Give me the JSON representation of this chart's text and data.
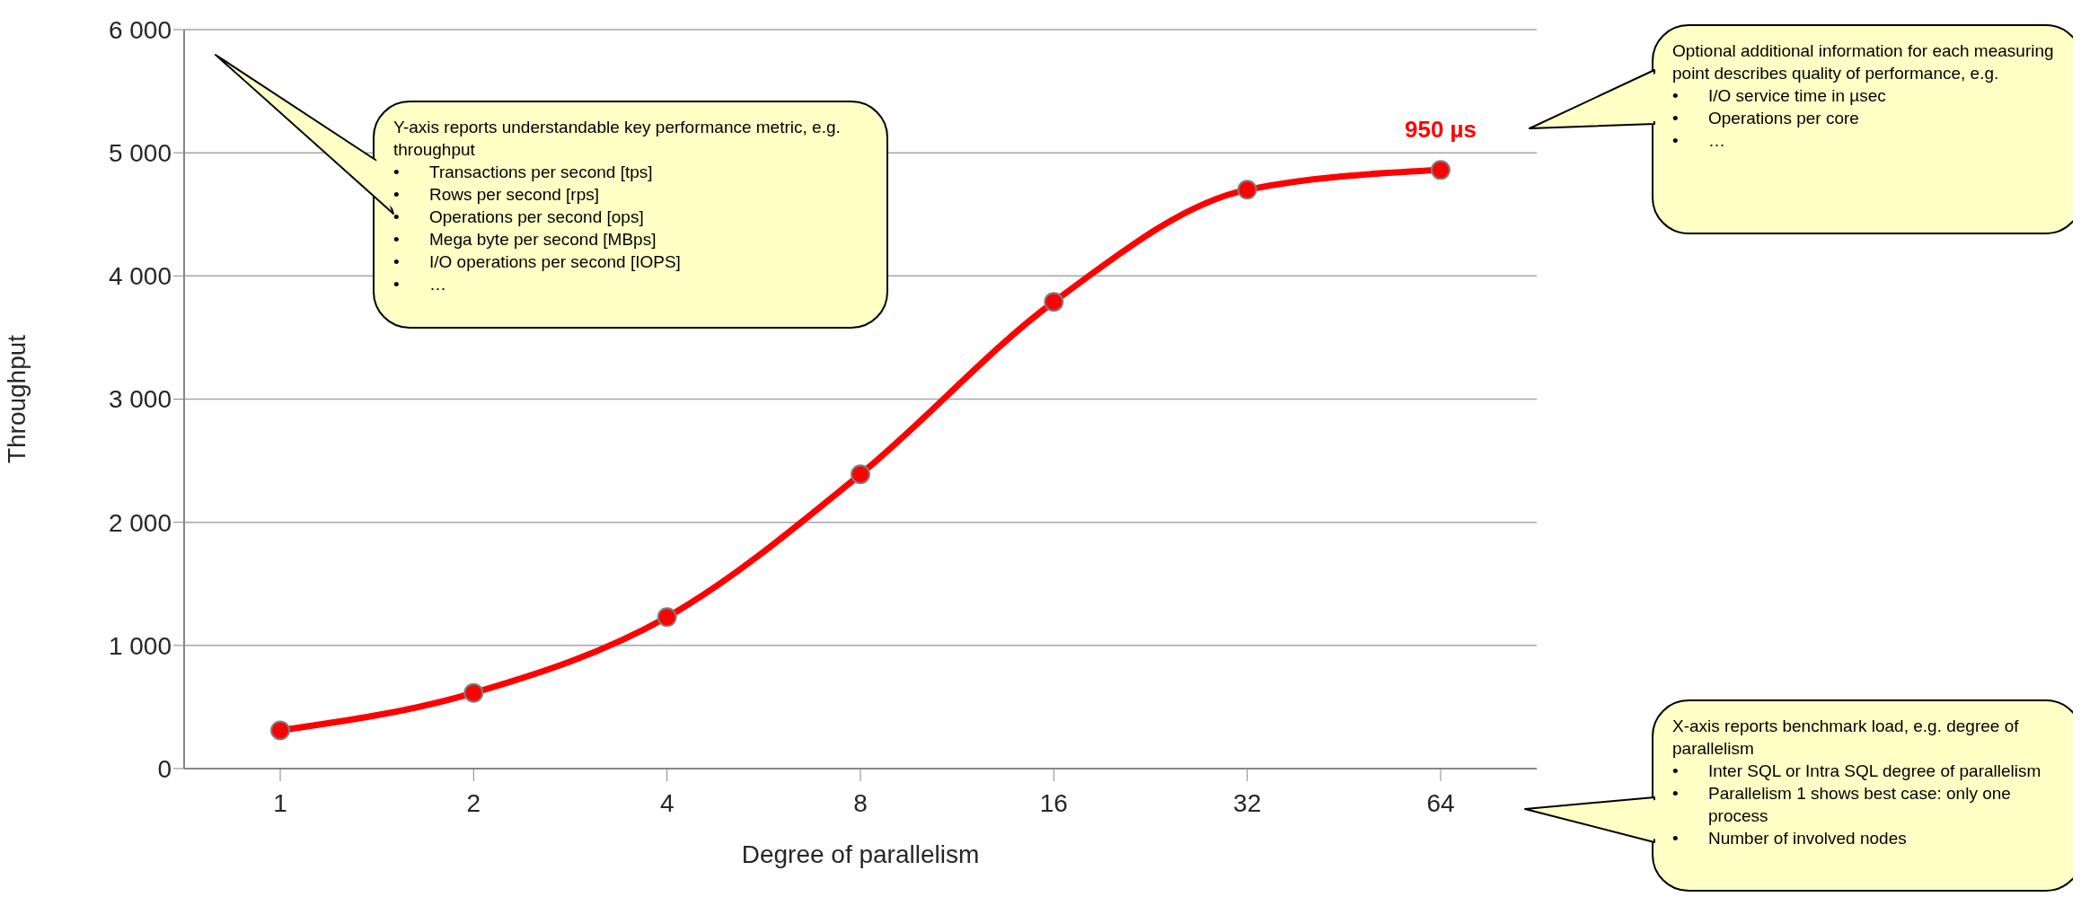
{
  "chart_data": {
    "type": "line",
    "xlabel": "Degree of parallelism",
    "ylabel": "Throughput",
    "categories": [
      "1",
      "2",
      "4",
      "8",
      "16",
      "32",
      "64"
    ],
    "series": [
      {
        "color": "#ff0000",
        "values": [
          310,
          615,
          1230,
          2390,
          3790,
          4700,
          4860
        ]
      }
    ],
    "ylim": [
      0,
      6000
    ],
    "yticks": [
      {
        "value": 0,
        "label": "0"
      },
      {
        "value": 1000,
        "label": "1 000"
      },
      {
        "value": 2000,
        "label": "2 000"
      },
      {
        "value": 3000,
        "label": "3 000"
      },
      {
        "value": 4000,
        "label": "4 000"
      },
      {
        "value": 5000,
        "label": "5 000"
      },
      {
        "value": 6000,
        "label": "6 000"
      }
    ],
    "grid": "y",
    "marker": "circle",
    "line_style": "solid",
    "annotations": [
      "Y-axis reports understandable key performance metric, e.g. throughput\n• Transactions per second [tps]\n• Rows per second [rps]\n• Operations per second [ops]\n• Mega byte per second [MBps]\n• I/O operations per second [IOPS]\n• …",
      "Optional additional information for each measuring point describes quality of performance, e.g.\n• I/O service time in µsec\n• Operations per core\n• …",
      "X-axis reports benchmark load, e.g. degree of parallelism\n• Inter SQL or Intra SQL degree of parallelism\n• Parallelism 1 shows best case: only one process\n• Number of involved nodes",
      {
        "text": "950 µs",
        "x": "64",
        "y": 4860
      }
    ]
  }
}
